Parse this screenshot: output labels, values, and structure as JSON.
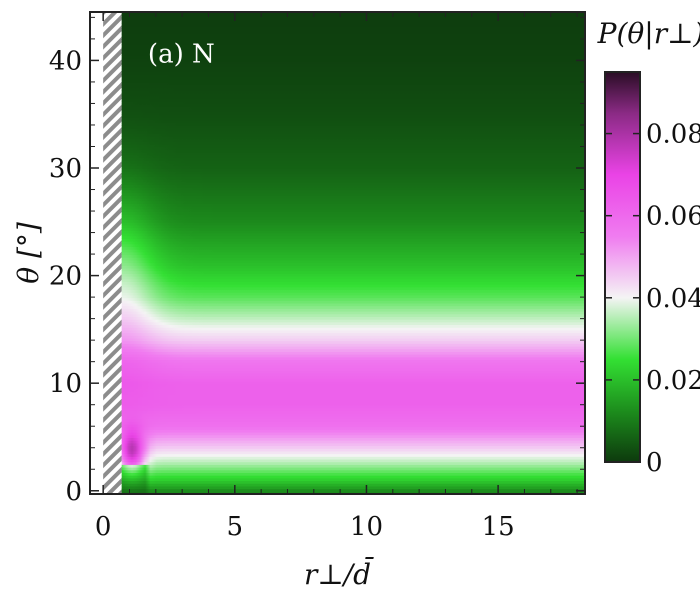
{
  "chart_data": {
    "type": "heatmap",
    "annotation": "(a) N",
    "xlabel": "r⊥/d̄",
    "ylabel": "θ [°]",
    "xlim": [
      -0.5,
      18.3
    ],
    "ylim": [
      -0.3,
      44.5
    ],
    "excluded_region_x": [
      0,
      0.7
    ],
    "x_ticks": [
      0,
      5,
      10,
      15
    ],
    "y_ticks": [
      0,
      10,
      20,
      30,
      40
    ],
    "colorbar": {
      "label": "P(θ|r⊥)",
      "range": [
        0,
        0.095
      ],
      "ticks": [
        0,
        0.02,
        0.04,
        0.06,
        0.08
      ],
      "tick_labels": [
        "0",
        "0.02",
        "0.04",
        "0.06",
        "0.08"
      ],
      "colors": [
        {
          "value": 0.0,
          "color": "#0d3a0d"
        },
        {
          "value": 0.012,
          "color": "#1c8a1c"
        },
        {
          "value": 0.025,
          "color": "#33e033"
        },
        {
          "value": 0.04,
          "color": "#f4f4f4"
        },
        {
          "value": 0.055,
          "color": "#f07cf0"
        },
        {
          "value": 0.07,
          "color": "#ea43e6"
        },
        {
          "value": 0.085,
          "color": "#8a2a84"
        },
        {
          "value": 0.095,
          "color": "#2a0d25"
        }
      ]
    },
    "profile_at_large_r": [
      {
        "theta": 0,
        "p": 0.012
      },
      {
        "theta": 1,
        "p": 0.022
      },
      {
        "theta": 2.5,
        "p": 0.034
      },
      {
        "theta": 4,
        "p": 0.045
      },
      {
        "theta": 6,
        "p": 0.058
      },
      {
        "theta": 8,
        "p": 0.062
      },
      {
        "theta": 10,
        "p": 0.062
      },
      {
        "theta": 12,
        "p": 0.057
      },
      {
        "theta": 14,
        "p": 0.045
      },
      {
        "theta": 16,
        "p": 0.036
      },
      {
        "theta": 18,
        "p": 0.028
      },
      {
        "theta": 21,
        "p": 0.02
      },
      {
        "theta": 25,
        "p": 0.012
      },
      {
        "theta": 30,
        "p": 0.006
      },
      {
        "theta": 35,
        "p": 0.003
      },
      {
        "theta": 40,
        "p": 0.0012
      },
      {
        "theta": 45,
        "p": 0.0004
      }
    ],
    "near_wall_peak": {
      "r": 1.1,
      "theta": 3.5,
      "p": 0.09
    }
  }
}
